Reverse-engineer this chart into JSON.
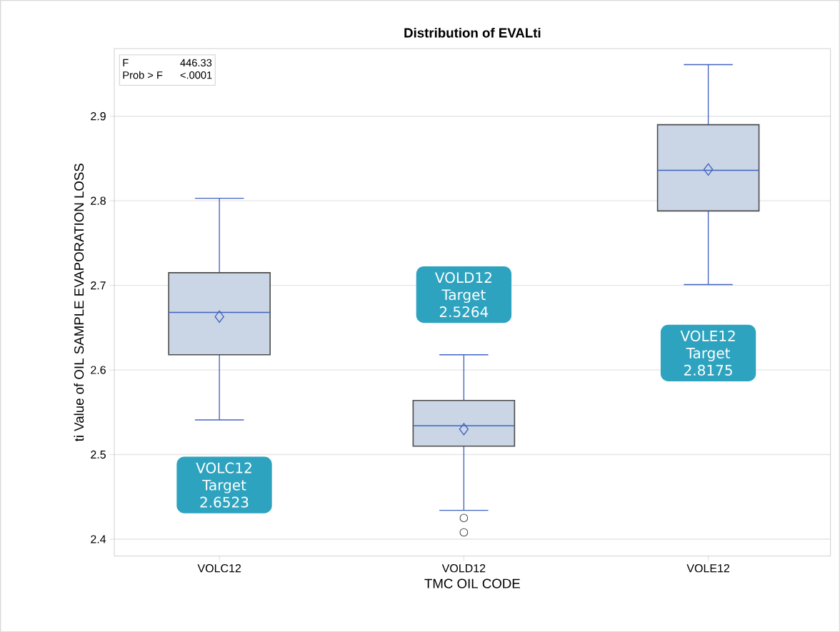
{
  "chart_data": {
    "type": "box",
    "title": "Distribution of EVALti",
    "xlabel": "TMC OIL CODE",
    "ylabel": "ti Value of OIL SAMPLE EVAPORATION LOSS",
    "categories": [
      "VOLC12",
      "VOLD12",
      "VOLE12"
    ],
    "boxes": [
      {
        "low": 2.541,
        "q1": 2.618,
        "median": 2.668,
        "q3": 2.715,
        "high": 2.803,
        "mean": 2.663
      },
      {
        "low": 2.434,
        "q1": 2.51,
        "median": 2.534,
        "q3": 2.564,
        "high": 2.618,
        "mean": 2.53,
        "outliers": [
          2.425,
          2.408
        ]
      },
      {
        "low": 2.701,
        "q1": 2.788,
        "median": 2.836,
        "q3": 2.89,
        "high": 2.961,
        "mean": 2.837
      }
    ],
    "color": "#cad5e5",
    "ylim": [
      2.38,
      2.98
    ],
    "yticks": [
      2.4,
      2.5,
      2.6,
      2.7,
      2.8,
      2.9
    ],
    "grid": "y",
    "marker": "diamond",
    "annotations": [
      "F",
      "446.33",
      "Prob > F",
      "<.0001",
      "VOLC12 Target 2.6523",
      "VOLD12 Target 2.5264",
      "VOLE12 Target 2.8175"
    ]
  }
}
